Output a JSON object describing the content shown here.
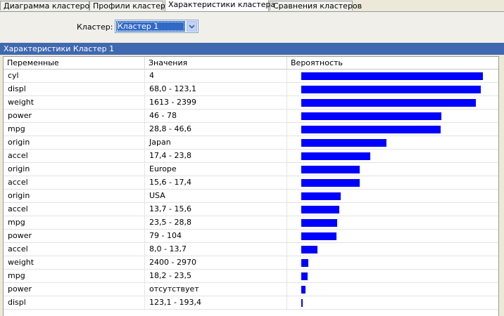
{
  "tabs": [
    {
      "label": "Диаграмма кластеров",
      "active": false
    },
    {
      "label": "Профили кластера",
      "active": false
    },
    {
      "label": "Характеристики кластера",
      "active": true
    },
    {
      "label": "Сравнения кластеров",
      "active": false
    }
  ],
  "filter": {
    "label": "Кластер:",
    "selected": "Кластер 1"
  },
  "panel": {
    "title": "Характеристики Кластер 1"
  },
  "table": {
    "columns": [
      "Переменные",
      "Значения",
      "Вероятность"
    ],
    "bar_color": "#0000ff",
    "rows": [
      {
        "variable": "cyl",
        "value": "4",
        "probability": 0.986
      },
      {
        "variable": "displ",
        "value": "68,0 - 123,1",
        "probability": 0.973
      },
      {
        "variable": "weight",
        "value": "1613 - 2399",
        "probability": 0.946
      },
      {
        "variable": "power",
        "value": "46 - 78",
        "probability": 0.758
      },
      {
        "variable": "mpg",
        "value": "28,8 - 46,6",
        "probability": 0.754
      },
      {
        "variable": "origin",
        "value": "Japan",
        "probability": 0.462
      },
      {
        "variable": "accel",
        "value": "17,4 - 23,8",
        "probability": 0.373
      },
      {
        "variable": "origin",
        "value": "Europe",
        "probability": 0.315
      },
      {
        "variable": "accel",
        "value": "15,6 - 17,4",
        "probability": 0.315
      },
      {
        "variable": "origin",
        "value": "USA",
        "probability": 0.212
      },
      {
        "variable": "accel",
        "value": "13,7 - 15,6",
        "probability": 0.208
      },
      {
        "variable": "mpg",
        "value": "23,5 - 28,8",
        "probability": 0.196
      },
      {
        "variable": "power",
        "value": "79 - 104",
        "probability": 0.192
      },
      {
        "variable": "accel",
        "value": "8,0 - 13,7",
        "probability": 0.088
      },
      {
        "variable": "weight",
        "value": "2400 - 2970",
        "probability": 0.038
      },
      {
        "variable": "mpg",
        "value": "18,2 - 23,5",
        "probability": 0.035
      },
      {
        "variable": "power",
        "value": "отсутствует",
        "probability": 0.023
      },
      {
        "variable": "displ",
        "value": "123,1 - 193,4",
        "probability": 0.008
      }
    ]
  }
}
